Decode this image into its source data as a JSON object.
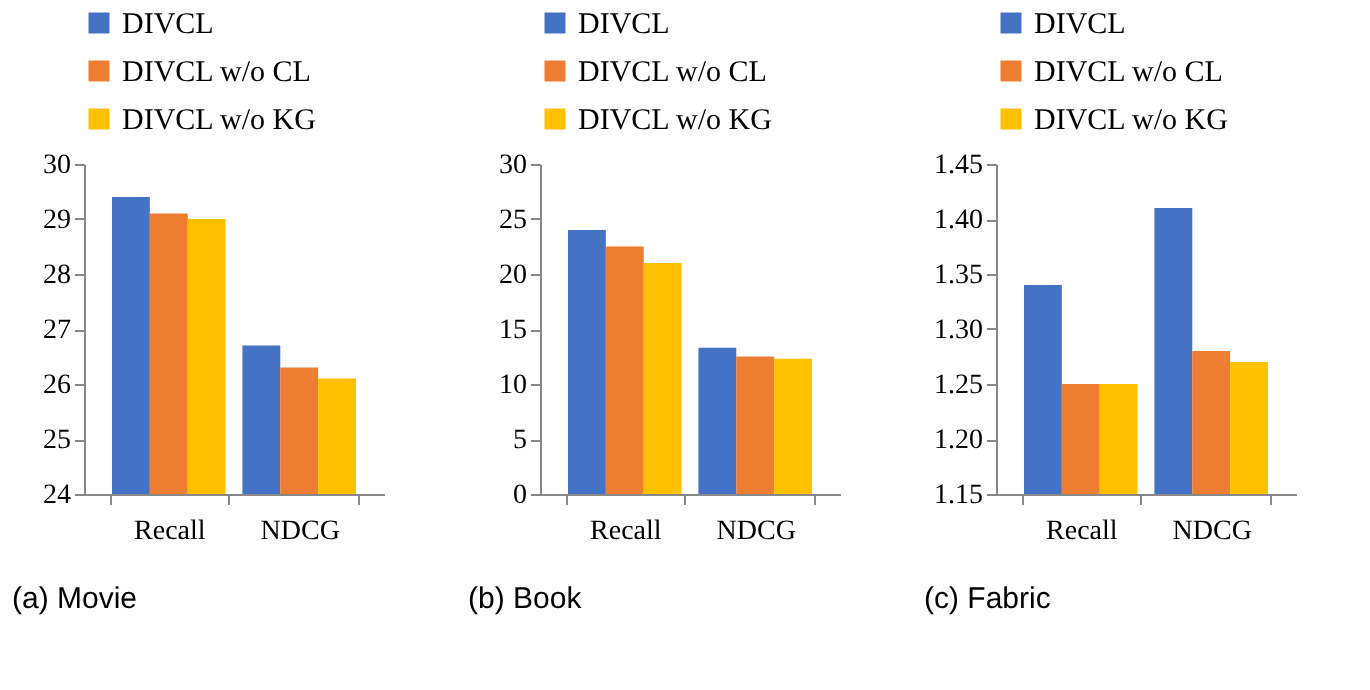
{
  "chart_data": [
    {
      "type": "bar",
      "title": "(a) Movie",
      "categories": [
        "Recall",
        "NDCG"
      ],
      "legend": "top",
      "grid": false,
      "ylim": [
        24,
        30
      ],
      "yticks": [
        24,
        25,
        26,
        27,
        28,
        29,
        30
      ],
      "series": [
        {
          "name": "DIVCL",
          "color": "#4472c4",
          "values": [
            29.4,
            26.7
          ]
        },
        {
          "name": "DIVCL w/o CL",
          "color": "#ed7d31",
          "values": [
            29.1,
            26.3
          ]
        },
        {
          "name": "DIVCL w/o KG",
          "color": "#ffc000",
          "values": [
            29.0,
            26.1
          ]
        }
      ]
    },
    {
      "type": "bar",
      "title": "(b) Book",
      "categories": [
        "Recall",
        "NDCG"
      ],
      "legend": "top",
      "grid": false,
      "ylim": [
        0,
        30
      ],
      "yticks": [
        0,
        5,
        10,
        15,
        20,
        25,
        30
      ],
      "series": [
        {
          "name": "DIVCL",
          "color": "#4472c4",
          "values": [
            24.0,
            13.3
          ]
        },
        {
          "name": "DIVCL w/o CL",
          "color": "#ed7d31",
          "values": [
            22.5,
            12.5
          ]
        },
        {
          "name": "DIVCL w/o KG",
          "color": "#ffc000",
          "values": [
            21.0,
            12.3
          ]
        }
      ]
    },
    {
      "type": "bar",
      "title": "(c) Fabric",
      "categories": [
        "Recall",
        "NDCG"
      ],
      "legend": "top",
      "grid": false,
      "ylim": [
        1.15,
        1.45
      ],
      "yticks": [
        {
          "value": 1.15,
          "label": "1.15"
        },
        {
          "value": 1.2,
          "label": "1.20"
        },
        {
          "value": 1.25,
          "label": "1.25"
        },
        {
          "value": 1.3,
          "label": "1.30"
        },
        {
          "value": 1.35,
          "label": "1.35"
        },
        {
          "value": 1.4,
          "label": "1.40"
        },
        {
          "value": 1.45,
          "label": "1.45"
        }
      ],
      "series": [
        {
          "name": "DIVCL",
          "color": "#4472c4",
          "values": [
            1.34,
            1.41
          ]
        },
        {
          "name": "DIVCL w/o CL",
          "color": "#ed7d31",
          "values": [
            1.25,
            1.28
          ]
        },
        {
          "name": "DIVCL w/o KG",
          "color": "#ffc000",
          "values": [
            1.25,
            1.27
          ]
        }
      ]
    }
  ]
}
